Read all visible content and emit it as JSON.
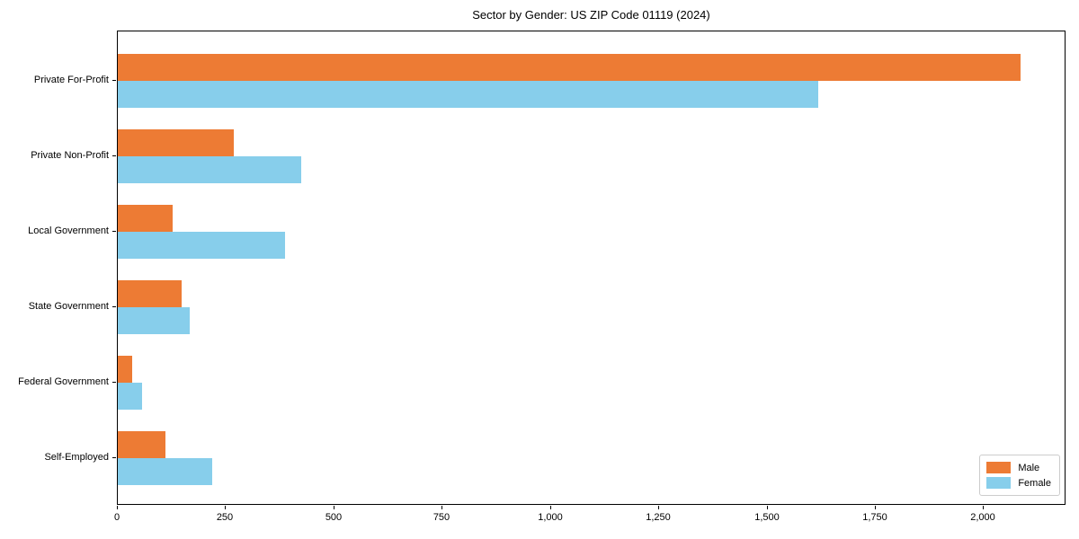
{
  "chart_data": {
    "type": "bar",
    "orientation": "horizontal",
    "title": "Sector by Gender: US ZIP Code 01119 (2024)",
    "categories": [
      "Private For-Profit",
      "Private Non-Profit",
      "Local Government",
      "State Government",
      "Federal Government",
      "Self-Employed"
    ],
    "series": [
      {
        "name": "Male",
        "color": "#ED7B34",
        "values": [
          2084,
          267,
          126,
          148,
          34,
          110
        ]
      },
      {
        "name": "Female",
        "color": "#87CEEB",
        "values": [
          1618,
          423,
          386,
          167,
          57,
          217
        ]
      }
    ],
    "xlabel": "",
    "ylabel": "",
    "xlim": [
      0,
      2190
    ],
    "xticks": [
      0,
      250,
      500,
      750,
      1000,
      1250,
      1500,
      1750,
      2000
    ],
    "xtick_labels": [
      "0",
      "250",
      "500",
      "750",
      "1,000",
      "1,250",
      "1,500",
      "1,750",
      "2,000"
    ],
    "grid": false,
    "legend": {
      "position": "lower right",
      "entries": [
        "Male",
        "Female"
      ]
    },
    "colors": {
      "background": "#ffffff",
      "spine": "#000000",
      "text": "#000000",
      "legend_border": "#cccccc"
    }
  }
}
